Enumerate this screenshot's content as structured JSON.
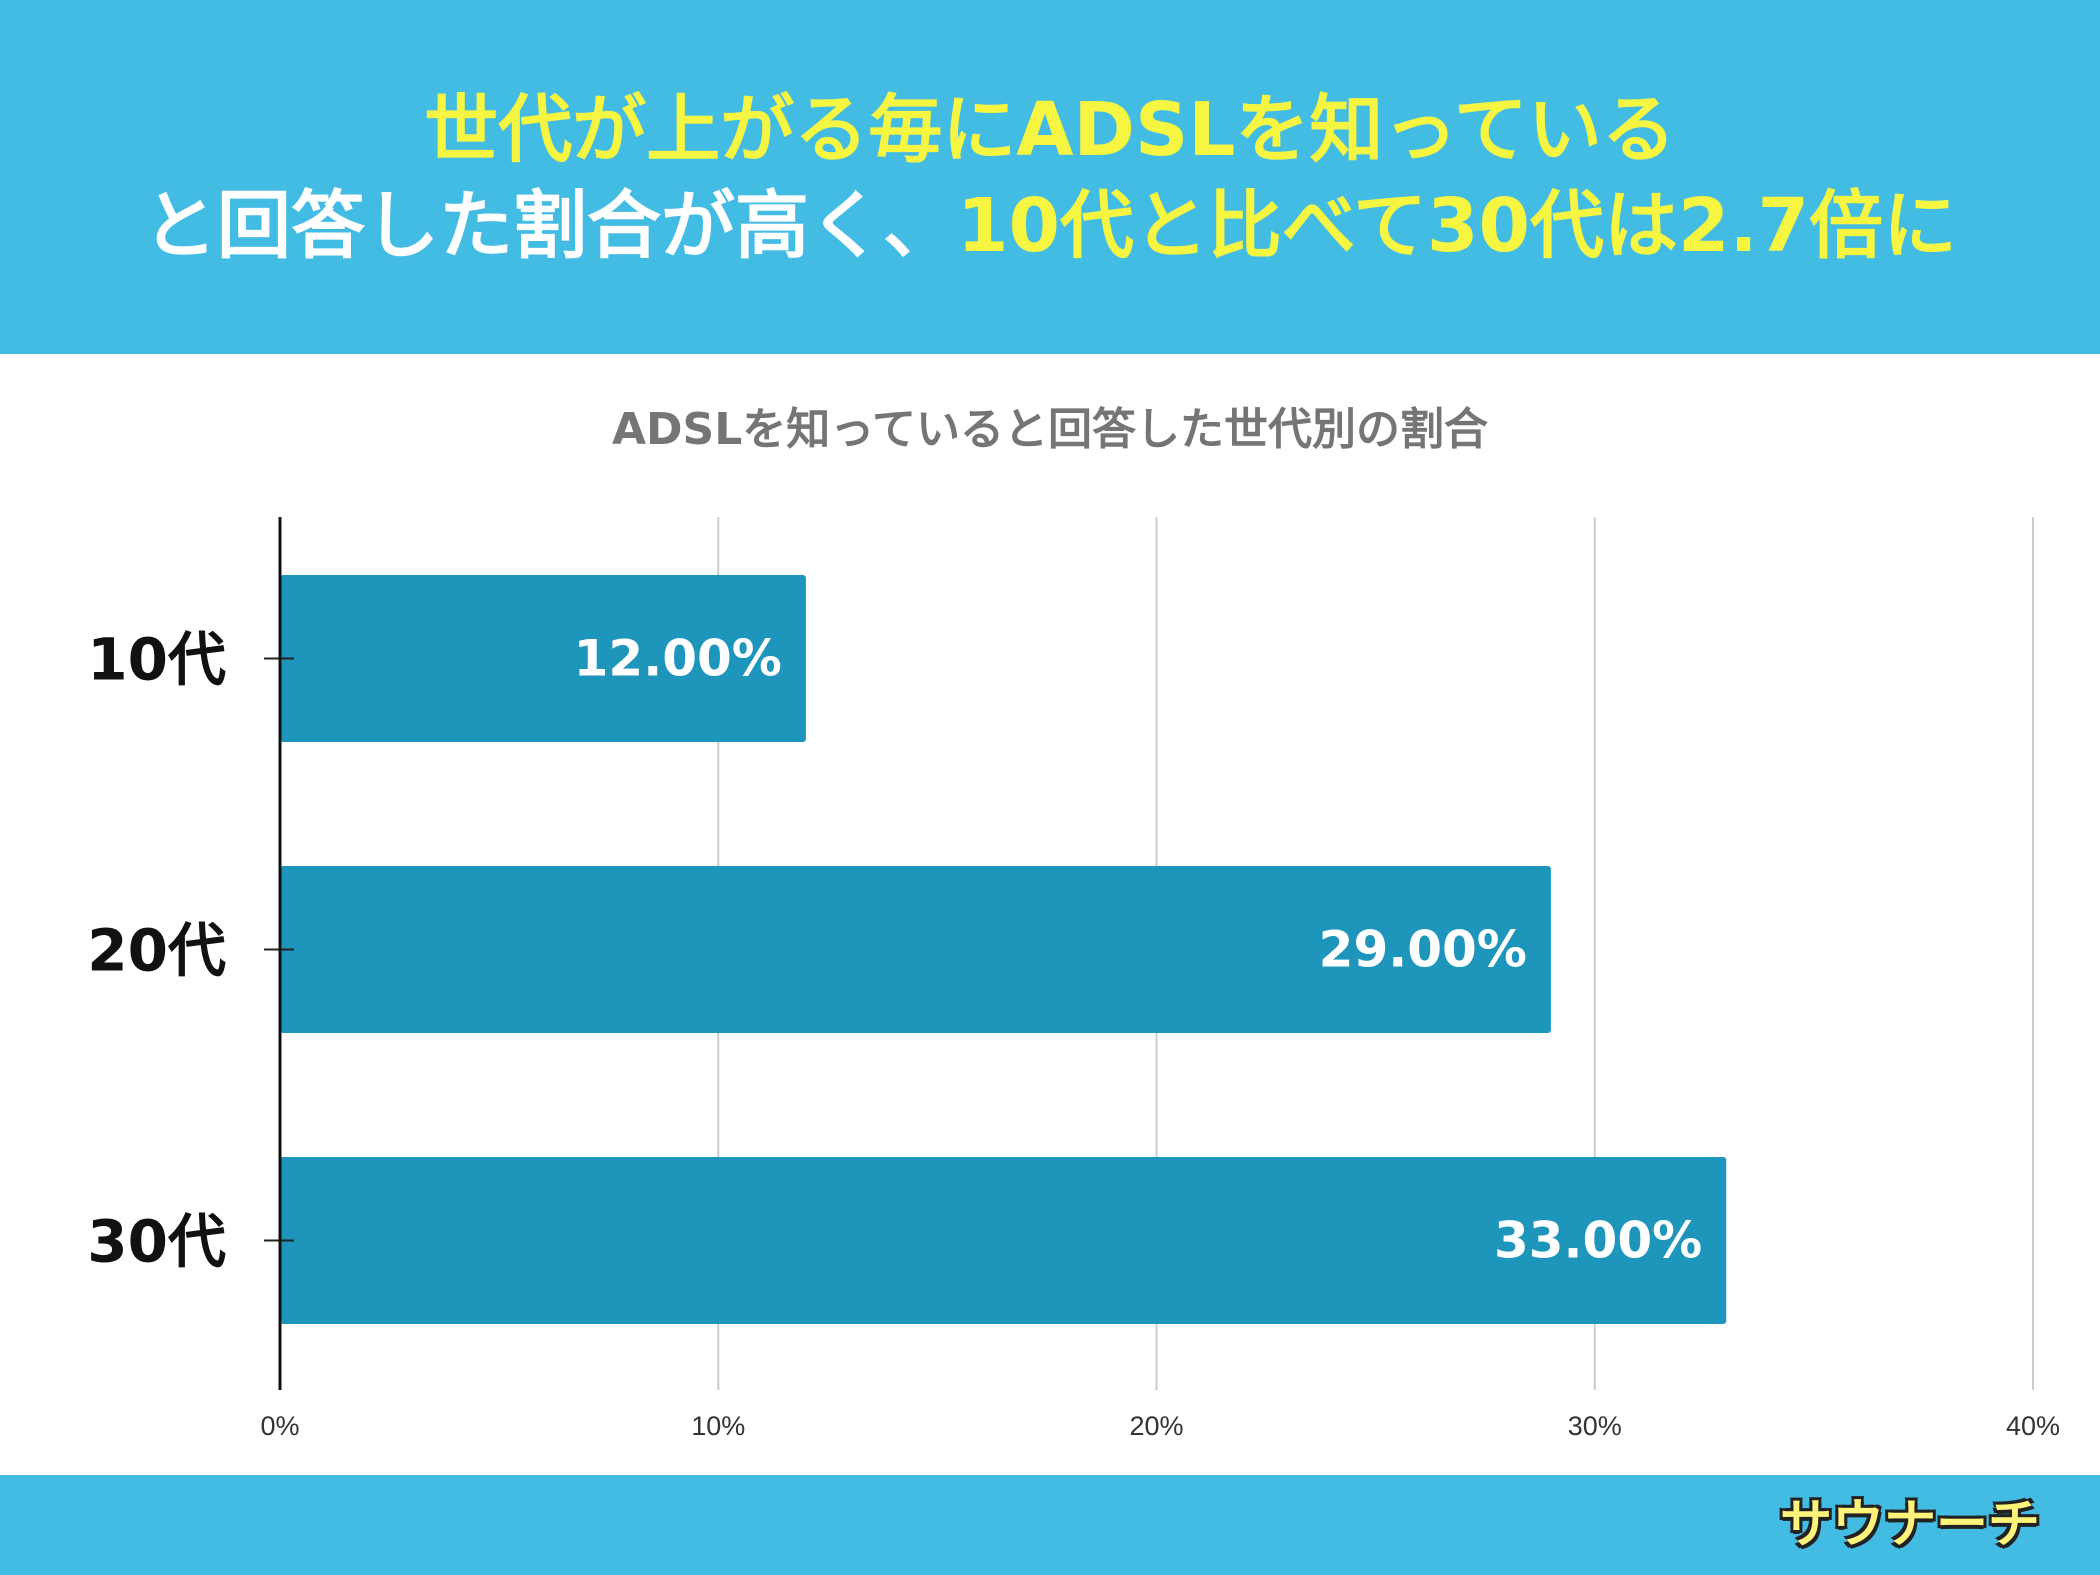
{
  "header": {
    "line1": "世代が上がる毎にADSLを知っている",
    "line2_white": "と回答した割合が高く、",
    "line2_yellow": "10代と比べて30代は2.7倍に"
  },
  "colors": {
    "header_bg": "#43bce4",
    "highlight": "#f5f542",
    "bar": "#1e96bc",
    "gridline": "#cccccc",
    "title_gray": "#757575"
  },
  "chart_data": {
    "type": "bar",
    "orientation": "horizontal",
    "title": "ADSLを知っていると回答した世代別の割合",
    "categories": [
      "10代",
      "20代",
      "30代"
    ],
    "values": [
      12,
      29,
      33
    ],
    "value_labels": [
      "12.00%",
      "29.00%",
      "33.00%"
    ],
    "xlim": [
      0,
      40
    ],
    "x_ticks": [
      0,
      10,
      20,
      30,
      40
    ],
    "x_tick_labels": [
      "0%",
      "10%",
      "20%",
      "30%",
      "40%"
    ],
    "grid": true,
    "legend": "none"
  },
  "footer": {
    "logo_text": "サウナーチ"
  }
}
